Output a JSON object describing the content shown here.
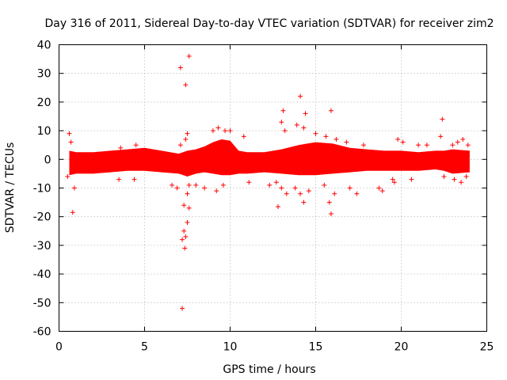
{
  "chart_data": {
    "type": "scatter",
    "title": "Day 316 of 2011, Sidereal Day-to-day VTEC variation (SDTVAR) for receiver zim2",
    "xlabel": "GPS time / hours",
    "ylabel": "SDTVAR / TECUs",
    "xlim": [
      0,
      25
    ],
    "ylim": [
      -60,
      40
    ],
    "xticks": [
      0,
      5,
      10,
      15,
      20,
      25
    ],
    "yticks": [
      -60,
      -50,
      -40,
      -30,
      -20,
      -10,
      0,
      10,
      20,
      30,
      40
    ],
    "grid": true,
    "marker": "+",
    "series_color": "#ff0000",
    "dense_band": {
      "x": [
        0.6,
        1.0,
        2.0,
        3.0,
        4.0,
        5.0,
        6.0,
        7.0,
        7.5,
        8.0,
        8.5,
        9.0,
        9.5,
        10.0,
        10.5,
        11.0,
        12.0,
        13.0,
        14.0,
        15.0,
        16.0,
        17.0,
        18.0,
        19.0,
        20.0,
        21.0,
        22.0,
        22.5,
        23.0,
        24.0
      ],
      "upper": [
        3.0,
        2.5,
        2.5,
        3.0,
        3.5,
        4.0,
        3.0,
        2.0,
        3.0,
        3.5,
        4.5,
        6.0,
        7.0,
        6.5,
        3.0,
        2.5,
        2.5,
        3.5,
        5.0,
        6.0,
        5.5,
        4.0,
        3.5,
        3.0,
        3.0,
        2.5,
        3.0,
        3.0,
        3.5,
        3.0
      ],
      "lower": [
        -5.5,
        -5.0,
        -5.0,
        -4.5,
        -4.0,
        -4.0,
        -4.5,
        -5.0,
        -6.0,
        -5.0,
        -4.5,
        -5.0,
        -5.5,
        -5.5,
        -5.0,
        -5.0,
        -4.5,
        -5.0,
        -5.5,
        -5.5,
        -5.0,
        -4.5,
        -4.0,
        -4.0,
        -4.0,
        -4.0,
        -3.5,
        -4.0,
        -5.0,
        -4.5
      ]
    },
    "points": [
      {
        "x": 7.1,
        "y": 32
      },
      {
        "x": 7.6,
        "y": 36
      },
      {
        "x": 7.4,
        "y": 26
      },
      {
        "x": 0.8,
        "y": -18.5
      },
      {
        "x": 7.2,
        "y": -52
      },
      {
        "x": 7.2,
        "y": -28
      },
      {
        "x": 7.3,
        "y": -25
      },
      {
        "x": 7.35,
        "y": -31
      },
      {
        "x": 7.4,
        "y": -27
      },
      {
        "x": 7.5,
        "y": -22
      },
      {
        "x": 7.6,
        "y": -17
      },
      {
        "x": 7.3,
        "y": -16
      },
      {
        "x": 7.5,
        "y": -12
      },
      {
        "x": 7.6,
        "y": -9
      },
      {
        "x": 7.5,
        "y": 9
      },
      {
        "x": 7.4,
        "y": 7
      },
      {
        "x": 7.1,
        "y": 5
      },
      {
        "x": 0.6,
        "y": 9
      },
      {
        "x": 0.7,
        "y": 6
      },
      {
        "x": 0.5,
        "y": -6
      },
      {
        "x": 0.9,
        "y": -10
      },
      {
        "x": 3.6,
        "y": 4
      },
      {
        "x": 4.5,
        "y": 5
      },
      {
        "x": 3.5,
        "y": -7
      },
      {
        "x": 4.4,
        "y": -7
      },
      {
        "x": 6.6,
        "y": -9
      },
      {
        "x": 6.9,
        "y": -10
      },
      {
        "x": 8.0,
        "y": -9
      },
      {
        "x": 8.5,
        "y": -10
      },
      {
        "x": 9.0,
        "y": 10
      },
      {
        "x": 9.3,
        "y": 11
      },
      {
        "x": 9.7,
        "y": 10
      },
      {
        "x": 10.0,
        "y": 10
      },
      {
        "x": 9.2,
        "y": -11
      },
      {
        "x": 9.6,
        "y": -9
      },
      {
        "x": 10.8,
        "y": 8
      },
      {
        "x": 11.1,
        "y": -8
      },
      {
        "x": 12.3,
        "y": -9
      },
      {
        "x": 12.7,
        "y": -8
      },
      {
        "x": 13.0,
        "y": 13
      },
      {
        "x": 13.1,
        "y": 17
      },
      {
        "x": 13.2,
        "y": 10
      },
      {
        "x": 12.8,
        "y": -16.5
      },
      {
        "x": 13.0,
        "y": -10
      },
      {
        "x": 13.3,
        "y": -12
      },
      {
        "x": 13.9,
        "y": 12
      },
      {
        "x": 14.1,
        "y": 22
      },
      {
        "x": 14.4,
        "y": 16
      },
      {
        "x": 14.3,
        "y": 11
      },
      {
        "x": 13.8,
        "y": -10
      },
      {
        "x": 14.1,
        "y": -12
      },
      {
        "x": 14.3,
        "y": -15
      },
      {
        "x": 14.6,
        "y": -11
      },
      {
        "x": 15.0,
        "y": 9
      },
      {
        "x": 15.6,
        "y": 8
      },
      {
        "x": 15.9,
        "y": 17
      },
      {
        "x": 16.2,
        "y": 7
      },
      {
        "x": 15.5,
        "y": -9
      },
      {
        "x": 15.8,
        "y": -15
      },
      {
        "x": 15.9,
        "y": -19
      },
      {
        "x": 16.1,
        "y": -12
      },
      {
        "x": 16.8,
        "y": 6
      },
      {
        "x": 17.0,
        "y": -10
      },
      {
        "x": 17.4,
        "y": -12
      },
      {
        "x": 17.8,
        "y": 5
      },
      {
        "x": 18.7,
        "y": -10
      },
      {
        "x": 18.9,
        "y": -11
      },
      {
        "x": 19.5,
        "y": -7
      },
      {
        "x": 19.8,
        "y": 7
      },
      {
        "x": 20.1,
        "y": 6
      },
      {
        "x": 19.6,
        "y": -8
      },
      {
        "x": 21.0,
        "y": 5
      },
      {
        "x": 21.5,
        "y": 5
      },
      {
        "x": 20.6,
        "y": -7
      },
      {
        "x": 22.3,
        "y": 8
      },
      {
        "x": 22.4,
        "y": 14
      },
      {
        "x": 22.5,
        "y": -6
      },
      {
        "x": 23.0,
        "y": 5
      },
      {
        "x": 23.3,
        "y": 6
      },
      {
        "x": 23.6,
        "y": 7
      },
      {
        "x": 23.9,
        "y": 5
      },
      {
        "x": 23.1,
        "y": -7
      },
      {
        "x": 23.5,
        "y": -8
      },
      {
        "x": 23.8,
        "y": -6
      }
    ]
  }
}
